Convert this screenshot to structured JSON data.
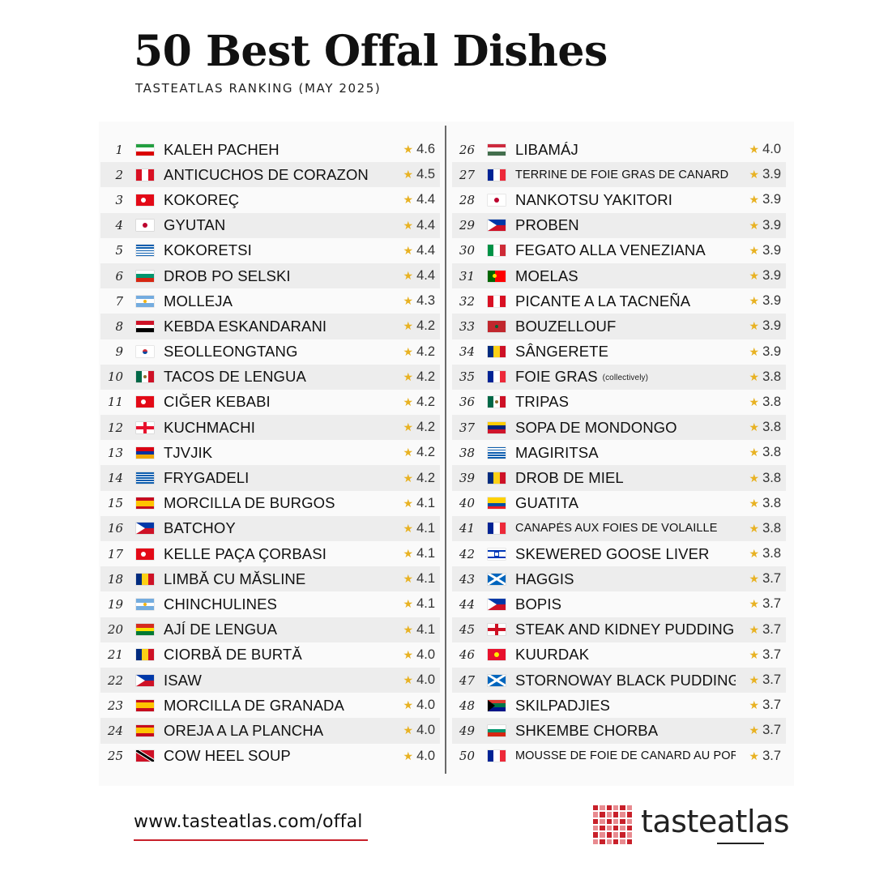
{
  "header": {
    "title": "50 Best Offal Dishes",
    "subtitle": "TASTEATLAS RANKING (MAY 2025)"
  },
  "left_column": [
    {
      "rank": "1",
      "flag": "ir",
      "name": "KALEH PACHEH",
      "rating": "4.6"
    },
    {
      "rank": "2",
      "flag": "pe",
      "name": "ANTICUCHOS DE CORAZON",
      "rating": "4.5"
    },
    {
      "rank": "3",
      "flag": "tr",
      "name": "KOKOREÇ",
      "rating": "4.4"
    },
    {
      "rank": "4",
      "flag": "jp",
      "name": "GYUTAN",
      "rating": "4.4"
    },
    {
      "rank": "5",
      "flag": "gr",
      "name": "KOKORETSI",
      "rating": "4.4"
    },
    {
      "rank": "6",
      "flag": "bg",
      "name": "DROB PO SELSKI",
      "rating": "4.4"
    },
    {
      "rank": "7",
      "flag": "ar",
      "name": "MOLLEJA",
      "rating": "4.3"
    },
    {
      "rank": "8",
      "flag": "eg",
      "name": "KEBDA ESKANDARANI",
      "rating": "4.2"
    },
    {
      "rank": "9",
      "flag": "kr",
      "name": "SEOLLEONGTANG",
      "rating": "4.2"
    },
    {
      "rank": "10",
      "flag": "mx",
      "name": "TACOS DE LENGUA",
      "rating": "4.2"
    },
    {
      "rank": "11",
      "flag": "tr",
      "name": "CIĞER KEBABI",
      "rating": "4.2"
    },
    {
      "rank": "12",
      "flag": "ge",
      "name": "KUCHMACHI",
      "rating": "4.2"
    },
    {
      "rank": "13",
      "flag": "am",
      "name": "TJVJIK",
      "rating": "4.2"
    },
    {
      "rank": "14",
      "flag": "gr",
      "name": "FRYGADELI",
      "rating": "4.2"
    },
    {
      "rank": "15",
      "flag": "es",
      "name": "MORCILLA DE BURGOS",
      "rating": "4.1"
    },
    {
      "rank": "16",
      "flag": "ph",
      "name": "BATCHOY",
      "rating": "4.1"
    },
    {
      "rank": "17",
      "flag": "tr",
      "name": "KELLE PAÇA ÇORBASI",
      "rating": "4.1"
    },
    {
      "rank": "18",
      "flag": "ro",
      "name": "LIMBĂ CU MĂSLINE",
      "rating": "4.1"
    },
    {
      "rank": "19",
      "flag": "ar",
      "name": "CHINCHULINES",
      "rating": "4.1"
    },
    {
      "rank": "20",
      "flag": "bo",
      "name": "AJÍ DE LENGUA",
      "rating": "4.1"
    },
    {
      "rank": "21",
      "flag": "ro",
      "name": "CIORBĂ DE BURTĂ",
      "rating": "4.0"
    },
    {
      "rank": "22",
      "flag": "ph",
      "name": "ISAW",
      "rating": "4.0"
    },
    {
      "rank": "23",
      "flag": "es",
      "name": "MORCILLA DE GRANADA",
      "rating": "4.0"
    },
    {
      "rank": "24",
      "flag": "es",
      "name": "OREJA A LA PLANCHA",
      "rating": "4.0"
    },
    {
      "rank": "25",
      "flag": "tt",
      "name": "COW HEEL SOUP",
      "rating": "4.0"
    }
  ],
  "right_column": [
    {
      "rank": "26",
      "flag": "hu",
      "name": "LIBAMÁJ",
      "rating": "4.0"
    },
    {
      "rank": "27",
      "flag": "fr",
      "name": "TERRINE DE FOIE GRAS DE CANARD",
      "rating": "3.9",
      "small": true
    },
    {
      "rank": "28",
      "flag": "jp",
      "name": "NANKOTSU YAKITORI",
      "rating": "3.9"
    },
    {
      "rank": "29",
      "flag": "ph",
      "name": "PROBEN",
      "rating": "3.9"
    },
    {
      "rank": "30",
      "flag": "it",
      "name": "FEGATO ALLA VENEZIANA",
      "rating": "3.9"
    },
    {
      "rank": "31",
      "flag": "pt",
      "name": "MOELAS",
      "rating": "3.9"
    },
    {
      "rank": "32",
      "flag": "pe",
      "name": "PICANTE A LA TACNEÑA",
      "rating": "3.9"
    },
    {
      "rank": "33",
      "flag": "ma",
      "name": "BOUZELLOUF",
      "rating": "3.9"
    },
    {
      "rank": "34",
      "flag": "ro",
      "name": "SÂNGERETE",
      "rating": "3.9"
    },
    {
      "rank": "35",
      "flag": "fr",
      "name": "FOIE GRAS",
      "note": "(collectively)",
      "rating": "3.8"
    },
    {
      "rank": "36",
      "flag": "mx",
      "name": "TRIPAS",
      "rating": "3.8"
    },
    {
      "rank": "37",
      "flag": "ve",
      "name": "SOPA DE MONDONGO",
      "rating": "3.8"
    },
    {
      "rank": "38",
      "flag": "gr",
      "name": "MAGIRITSA",
      "rating": "3.8"
    },
    {
      "rank": "39",
      "flag": "ro",
      "name": "DROB DE MIEL",
      "rating": "3.8"
    },
    {
      "rank": "40",
      "flag": "ec",
      "name": "GUATITA",
      "rating": "3.8"
    },
    {
      "rank": "41",
      "flag": "fr",
      "name": "CANAPÉS AUX FOIES DE VOLAILLE",
      "rating": "3.8",
      "small": true
    },
    {
      "rank": "42",
      "flag": "il",
      "name": "SKEWERED GOOSE LIVER",
      "rating": "3.8"
    },
    {
      "rank": "43",
      "flag": "sc",
      "name": "HAGGIS",
      "rating": "3.7"
    },
    {
      "rank": "44",
      "flag": "ph",
      "name": "BOPIS",
      "rating": "3.7"
    },
    {
      "rank": "45",
      "flag": "en",
      "name": "STEAK AND KIDNEY PUDDING",
      "rating": "3.7"
    },
    {
      "rank": "46",
      "flag": "kg",
      "name": "KUURDAK",
      "rating": "3.7"
    },
    {
      "rank": "47",
      "flag": "sc",
      "name": "STORNOWAY BLACK PUDDING",
      "rating": "3.7"
    },
    {
      "rank": "48",
      "flag": "za",
      "name": "SKILPADJIES",
      "rating": "3.7"
    },
    {
      "rank": "49",
      "flag": "bg",
      "name": "SHKEMBE CHORBA",
      "rating": "3.7"
    },
    {
      "rank": "50",
      "flag": "fr",
      "name": "MOUSSE DE FOIE DE CANARD AU PORTO",
      "rating": "3.7",
      "small": true
    }
  ],
  "star_icon": "★",
  "colors": {
    "accent_red": "#c8202a",
    "star": "#e8b223",
    "row_alt": "#ededed"
  },
  "footer": {
    "url": "www.tasteatlas.com/offal",
    "logo_text": "tasteatlas"
  }
}
